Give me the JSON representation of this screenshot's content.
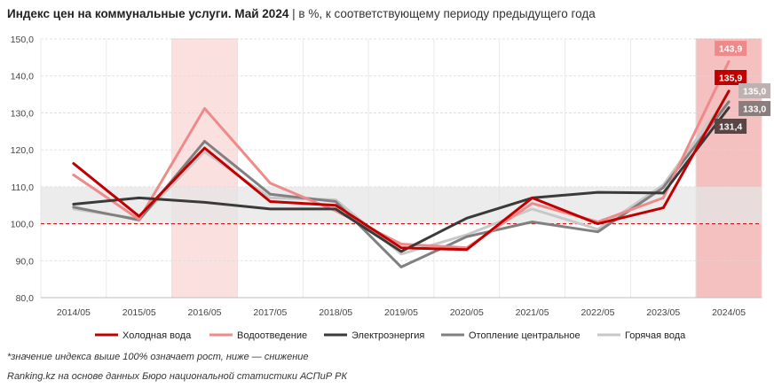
{
  "header": {
    "title": "Индекс цен на коммунальные услуги. Май 2024",
    "separator": "|",
    "subtitle": "в %, к соответствующему периоду предыдущего года"
  },
  "footer": {
    "note": "*значение индекса выше 100% означает рост, ниже — снижение",
    "source": "Ranking.kz на основе данных Бюро национальной статистики АСПиР РК"
  },
  "colors": {
    "cold_water": "#c00000",
    "sewerage": "#f08a8a",
    "electricity": "#3a3a3a",
    "heating": "#808080",
    "hot_water": "#c8c8c8",
    "band": "#e6e6e6",
    "highlight": "#fbe0e0",
    "highlight_strong": "#f4c0c0",
    "reference_line": "#c00000"
  },
  "chart_data": {
    "type": "line",
    "categories": [
      "2014/05",
      "2015/05",
      "2016/05",
      "2017/05",
      "2018/05",
      "2019/05",
      "2020/05",
      "2021/05",
      "2022/05",
      "2023/05",
      "2024/05"
    ],
    "ylim": [
      80,
      150
    ],
    "yticks": [
      "80,0",
      "90,0",
      "100,0",
      "110,0",
      "120,0",
      "130,0",
      "140,0",
      "150,0"
    ],
    "ytick_values": [
      80,
      90,
      100,
      110,
      120,
      130,
      140,
      150
    ],
    "grid": true,
    "band": [
      100,
      110
    ],
    "reference_line": 100,
    "highlighted_periods": [
      "2016/05",
      "2024/05"
    ],
    "legend_position": "bottom",
    "series": [
      {
        "name": "Холодная вода",
        "key": "cold_water",
        "values": [
          116.3,
          102.0,
          120.5,
          106.0,
          105.0,
          93.5,
          93.0,
          107.0,
          100.0,
          104.3,
          135.9
        ]
      },
      {
        "name": "Водоотведение",
        "key": "sewerage",
        "values": [
          113.2,
          101.2,
          131.2,
          111.0,
          103.5,
          94.5,
          93.5,
          105.5,
          100.5,
          107.0,
          143.9
        ]
      },
      {
        "name": "Электроэнергия",
        "key": "electricity",
        "values": [
          105.3,
          107.0,
          105.8,
          104.0,
          104.0,
          92.5,
          101.5,
          107.0,
          108.5,
          108.3,
          131.4
        ]
      },
      {
        "name": "Отопление центральное",
        "key": "heating",
        "values": [
          104.5,
          101.0,
          122.3,
          108.0,
          106.0,
          88.3,
          96.5,
          100.5,
          97.8,
          109.8,
          133.0
        ]
      },
      {
        "name": "Горячая вода",
        "key": "hot_water",
        "values": [
          104.0,
          101.3,
          119.5,
          107.0,
          106.5,
          91.8,
          97.0,
          104.0,
          98.5,
          110.5,
          135.0
        ]
      }
    ],
    "end_labels": [
      {
        "key": "sewerage",
        "text": "143,9",
        "value": 143.9
      },
      {
        "key": "cold_water",
        "text": "135,9",
        "value": 135.9
      },
      {
        "key": "hot_water",
        "text": "135,0",
        "value": 135.0
      },
      {
        "key": "heating",
        "text": "133,0",
        "value": 133.0
      },
      {
        "key": "electricity",
        "text": "131,4",
        "value": 131.4
      }
    ]
  }
}
